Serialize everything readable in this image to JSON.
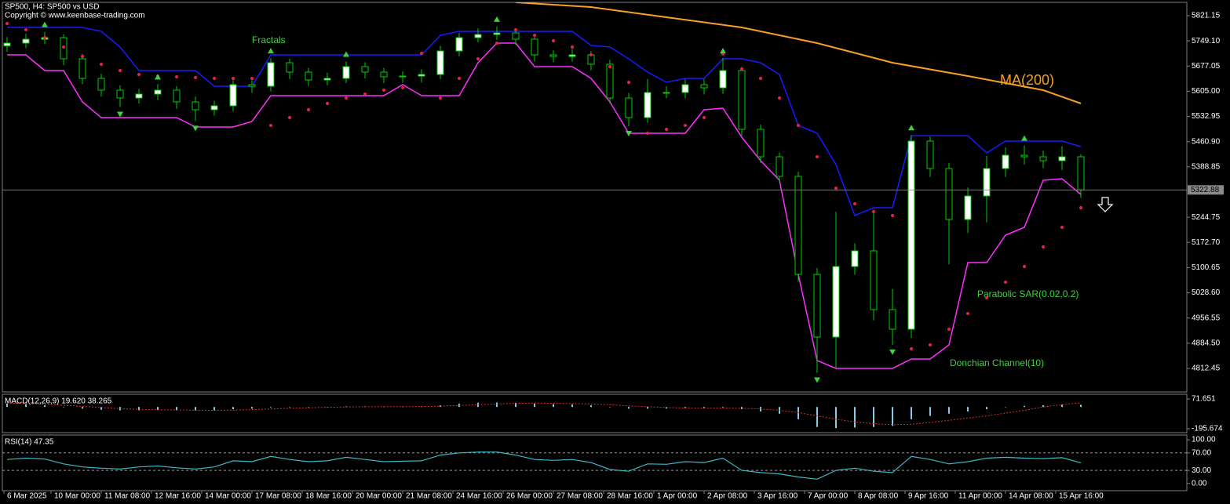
{
  "chart_data": [
    {
      "type": "candlestick",
      "title": "SP500, H4: SP500 vs USD",
      "subtitle": "Copyright © www.keenbase-trading.com",
      "x": [
        1,
        4,
        7,
        10,
        13,
        16,
        19,
        22,
        25,
        28,
        31,
        34,
        37,
        40,
        43,
        46,
        49,
        52,
        55,
        58,
        61,
        64,
        67,
        70,
        73,
        76,
        79,
        82,
        85,
        88,
        91,
        94,
        97,
        100,
        103,
        106,
        109,
        112,
        115,
        118,
        121,
        124,
        127,
        130,
        133,
        136,
        139,
        142,
        145,
        148,
        151,
        154,
        157,
        160,
        163,
        166,
        169,
        172
      ],
      "open": [
        5735.0,
        5742.7,
        5753.9,
        5758.4,
        5697.9,
        5641.8,
        5608.2,
        5585.8,
        5597.0,
        5608.2,
        5574.6,
        5552.2,
        5563.4,
        5623.9,
        5619.4,
        5686.7,
        5659.8,
        5637.4,
        5641.8,
        5675.5,
        5659.8,
        5646.3,
        5648.5,
        5653.0,
        5720.3,
        5758.4,
        5767.4,
        5771.8,
        5753.9,
        5709.1,
        5704.6,
        5709.1,
        5682.2,
        5585.8,
        5529.7,
        5601.5,
        5601.5,
        5623.9,
        5614.9,
        5664.3,
        5496.1,
        5417.7,
        5361.6,
        5081.4,
        4902.1,
        5103.8,
        5148.7,
        4980.6,
        4924.5,
        5462.5,
        5384.1,
        5238.3,
        5305.6,
        5384.1,
        5422.2,
        5417.7,
        5406.5,
        5417.7
      ],
      "high": [
        5760,
        5770,
        5775,
        5768,
        5712,
        5655,
        5622,
        5612,
        5625,
        5620,
        5590,
        5578,
        5640,
        5638,
        5700,
        5698,
        5672,
        5658,
        5690,
        5688,
        5672,
        5662,
        5668,
        5735,
        5772,
        5785,
        5790,
        5785,
        5765,
        5722,
        5726,
        5720,
        5695,
        5600,
        5640,
        5620,
        5640,
        5640,
        5700,
        5675,
        5510,
        5430,
        5375,
        5100,
        5260,
        5170,
        5260,
        5040,
        5480,
        5475,
        5400,
        5330,
        5420,
        5445,
        5450,
        5435,
        5448,
        5425
      ],
      "low": [
        5718,
        5728,
        5740,
        5680,
        5625,
        5590,
        5560,
        5570,
        5580,
        5555,
        5520,
        5535,
        5548,
        5600,
        5605,
        5640,
        5620,
        5622,
        5628,
        5642,
        5628,
        5630,
        5630,
        5640,
        5705,
        5745,
        5752,
        5738,
        5690,
        5688,
        5690,
        5665,
        5570,
        5505,
        5515,
        5585,
        5585,
        5596,
        5598,
        5478,
        5400,
        5345,
        5060,
        4800,
        4815,
        5080,
        4950,
        4880,
        4900,
        5360,
        5110,
        5200,
        5230,
        5360,
        5395,
        5385,
        5380,
        5300
      ],
      "close": [
        5742.7,
        5753.9,
        5758.4,
        5697.9,
        5641.8,
        5608.2,
        5585.8,
        5597.0,
        5608.2,
        5574.6,
        5552.2,
        5563.4,
        5623.9,
        5619.4,
        5686.7,
        5659.8,
        5637.4,
        5641.8,
        5675.5,
        5659.8,
        5646.3,
        5648.5,
        5653.0,
        5720.3,
        5758.4,
        5767.4,
        5771.8,
        5753.9,
        5709.1,
        5704.6,
        5709.1,
        5682.2,
        5585.8,
        5529.7,
        5601.5,
        5601.5,
        5623.9,
        5614.9,
        5664.3,
        5496.1,
        5417.7,
        5361.6,
        5081.4,
        4902.1,
        5103.8,
        5148.7,
        4980.6,
        4924.5,
        5462.5,
        5384.1,
        5238.3,
        5305.6,
        5384.1,
        5422.2,
        5417.7,
        5406.5,
        5417.7,
        5322.88
      ],
      "candle_colors": {
        "outline": "#00d000",
        "bull": "#ffffff",
        "bear": "#000000"
      },
      "ma": {
        "name": "MA(200)",
        "color": "#f7a028",
        "x": [
          82,
          94,
          106,
          118,
          130,
          142,
          154,
          166,
          172
        ],
        "values": [
          5859.3,
          5845.8,
          5816.7,
          5787.5,
          5742.7,
          5686.7,
          5648.5,
          5608.2,
          5570.1
        ]
      },
      "donchian": {
        "name": "Donchian Channel(10)",
        "upper_color": "#1a1aff",
        "lower_color": "#ff30ff",
        "upper": [
          5787.5,
          5787.5,
          5787.5,
          5787.5,
          5787.5,
          5776.3,
          5731.5,
          5664.3,
          5664.3,
          5664.3,
          5664.3,
          5619.4,
          5619.4,
          5619.4,
          5709.1,
          5709.1,
          5709.1,
          5709.1,
          5709.1,
          5709.1,
          5709.1,
          5709.1,
          5709.1,
          5765.1,
          5776.3,
          5776.3,
          5776.3,
          5776.3,
          5776.3,
          5776.3,
          5776.3,
          5736.0,
          5731.5,
          5697.9,
          5659.8,
          5630.6,
          5641.8,
          5641.8,
          5697.9,
          5697.9,
          5686.7,
          5653.0,
          5507.3,
          5484.9,
          5395.2,
          5249.5,
          5271.9,
          5271.9,
          5478.1,
          5478.1,
          5478.1,
          5478.1,
          5428.9,
          5462.5,
          5462.5,
          5462.5,
          5462.5,
          5446.8
        ],
        "lower": [
          5709.1,
          5709.1,
          5664.3,
          5664.3,
          5574.6,
          5529.7,
          5529.7,
          5529.7,
          5529.7,
          5529.7,
          5502.8,
          5502.8,
          5502.8,
          5518.5,
          5592.5,
          5592.5,
          5592.5,
          5592.5,
          5592.5,
          5592.5,
          5592.5,
          5623.9,
          5592.5,
          5592.5,
          5592.5,
          5686.7,
          5742.7,
          5742.7,
          5675.5,
          5675.5,
          5675.5,
          5641.8,
          5574.6,
          5484.9,
          5484.9,
          5484.9,
          5484.9,
          5552.2,
          5556.6,
          5473.7,
          5406.5,
          5350.4,
          5081.4,
          4834.9,
          4812.45,
          4812.45,
          4812.45,
          4812.45,
          4839.3,
          4839.3,
          4879.7,
          5115.0,
          5115.0,
          5193.5,
          5215.9,
          5350.4,
          5354.9,
          5310.1
        ]
      },
      "sar": {
        "name": "Parabolic SAR(0.02,0.2)",
        "color": "#e8204c",
        "values": [
          5798.7,
          5780.8,
          5758.4,
          5731.5,
          5704.6,
          5682.2,
          5664.3,
          5653.0,
          5648.5,
          5646.3,
          5644.1,
          5641.8,
          5641.8,
          5641.8,
          5507.3,
          5529.7,
          5552.2,
          5570.1,
          5585.8,
          5597.0,
          5608.2,
          5614.9,
          5713.6,
          5585.8,
          5641.8,
          5697.9,
          5742.7,
          5780.8,
          5765.1,
          5749.4,
          5731.5,
          5709.1,
          5675.5,
          5630.6,
          5484.9,
          5496.1,
          5507.3,
          5529.7,
          5712.0,
          5668.7,
          5641.8,
          5585.8,
          5507.3,
          5417.7,
          5328.0,
          5283.1,
          5260.7,
          5249.5,
          4868.5,
          4879.7,
          4924.5,
          4969.3,
          5014.2,
          5059.0,
          5103.8,
          5159.9,
          5215.9,
          5271.9
        ]
      },
      "fractals": {
        "name": "Fractals",
        "color": "#3fd13f"
      },
      "current_price": 5322.88,
      "xlim": [
        0,
        189
      ],
      "ylim": [
        4745.2,
        5859.3
      ],
      "yticks": [
        {
          "value": 5821.15,
          "label": "5821.15"
        },
        {
          "value": 5749.1,
          "label": "5749.10"
        },
        {
          "value": 5677.05,
          "label": "5677.05"
        },
        {
          "value": 5605,
          "label": "5605.00"
        },
        {
          "value": 5532.95,
          "label": "5532.95"
        },
        {
          "value": 5460.9,
          "label": "5460.90"
        },
        {
          "value": 5388.85,
          "label": "5388.85"
        },
        {
          "value": 5244.75,
          "label": "5244.75"
        },
        {
          "value": 5172.7,
          "label": "5172.70"
        },
        {
          "value": 5100.65,
          "label": "5100.65"
        },
        {
          "value": 5028.6,
          "label": "5028.60"
        },
        {
          "value": 4956.55,
          "label": "4956.55"
        },
        {
          "value": 4884.5,
          "label": "4884.50"
        },
        {
          "value": 4812.45,
          "label": "4812.45"
        }
      ],
      "xticks": [
        {
          "value": 0.5,
          "label": "6 Mar 2025"
        },
        {
          "value": 8,
          "label": "10 Mar 00:00"
        },
        {
          "value": 16,
          "label": "11 Mar 08:00"
        },
        {
          "value": 24,
          "label": "12 Mar 16:00"
        },
        {
          "value": 32,
          "label": "14 Mar 00:00"
        },
        {
          "value": 40,
          "label": "17 Mar 08:00"
        },
        {
          "value": 48,
          "label": "18 Mar 16:00"
        },
        {
          "value": 56,
          "label": "20 Mar 00:00"
        },
        {
          "value": 64,
          "label": "21 Mar 08:00"
        },
        {
          "value": 72,
          "label": "24 Mar 16:00"
        },
        {
          "value": 80,
          "label": "26 Mar 00:00"
        },
        {
          "value": 88,
          "label": "27 Mar 08:00"
        },
        {
          "value": 96,
          "label": "28 Mar 16:00"
        },
        {
          "value": 104,
          "label": "1 Apr 00:00"
        },
        {
          "value": 112,
          "label": "2 Apr 08:00"
        },
        {
          "value": 120,
          "label": "3 Apr 16:00"
        },
        {
          "value": 128,
          "label": "7 Apr 00:00"
        },
        {
          "value": 136,
          "label": "8 Apr 08:00"
        },
        {
          "value": 144,
          "label": "9 Apr 16:00"
        },
        {
          "value": 152,
          "label": "11 Apr 00:00"
        },
        {
          "value": 160,
          "label": "14 Apr 08:00"
        },
        {
          "value": 168,
          "label": "15 Apr 16:00"
        }
      ]
    },
    {
      "type": "macd",
      "title": "MACD(12,26,9) 19.620 38.265",
      "hist_color": "#7fd0e8",
      "signal_color": "#e03030",
      "values": [
        30,
        25,
        15,
        0,
        -15,
        -25,
        -30,
        -30,
        -28,
        -30,
        -32,
        -30,
        -20,
        -15,
        -5,
        0,
        0,
        0,
        5,
        5,
        3,
        3,
        5,
        15,
        30,
        38,
        40,
        38,
        30,
        25,
        22,
        15,
        0,
        -15,
        -15,
        -15,
        -10,
        -10,
        -5,
        -20,
        -40,
        -60,
        -110,
        -180,
        -190,
        -185,
        -180,
        -170,
        -110,
        -80,
        -60,
        -40,
        -20,
        0,
        10,
        15,
        20,
        19.62
      ],
      "signal": [
        35,
        30,
        25,
        15,
        5,
        -5,
        -15,
        -22,
        -25,
        -27,
        -29,
        -30,
        -28,
        -24,
        -18,
        -12,
        -7,
        -3,
        0,
        2,
        3,
        3,
        4,
        7,
        13,
        20,
        27,
        32,
        34,
        33,
        30,
        27,
        20,
        10,
        2,
        -5,
        -9,
        -11,
        -10,
        -12,
        -18,
        -30,
        -50,
        -80,
        -110,
        -135,
        -150,
        -160,
        -155,
        -140,
        -120,
        -100,
        -80,
        -55,
        -30,
        0,
        20,
        38.265
      ],
      "ylim": [
        -223.8,
        113.9
      ],
      "yticks": [
        71.651,
        -195.674
      ]
    },
    {
      "type": "line",
      "title": "RSI(14) 47.35",
      "color": "#3cb8c8",
      "values": [
        55,
        58,
        56,
        45,
        38,
        35,
        33,
        38,
        40,
        36,
        33,
        38,
        52,
        50,
        62,
        55,
        50,
        52,
        60,
        55,
        50,
        51,
        52,
        65,
        70,
        72,
        72,
        65,
        55,
        53,
        55,
        48,
        32,
        28,
        45,
        44,
        50,
        48,
        58,
        30,
        25,
        22,
        15,
        10,
        30,
        35,
        28,
        25,
        62,
        55,
        45,
        50,
        58,
        60,
        58,
        57,
        59,
        47.35
      ],
      "levels": [
        70,
        30
      ],
      "ylim": [
        -16.4,
        110.9
      ],
      "yticks": [
        {
          "value": 100,
          "label": "100.00"
        },
        {
          "value": 70,
          "label": "70.00"
        },
        {
          "value": 30,
          "label": "30.00"
        },
        {
          "value": 0,
          "label": "0.00"
        }
      ]
    }
  ]
}
